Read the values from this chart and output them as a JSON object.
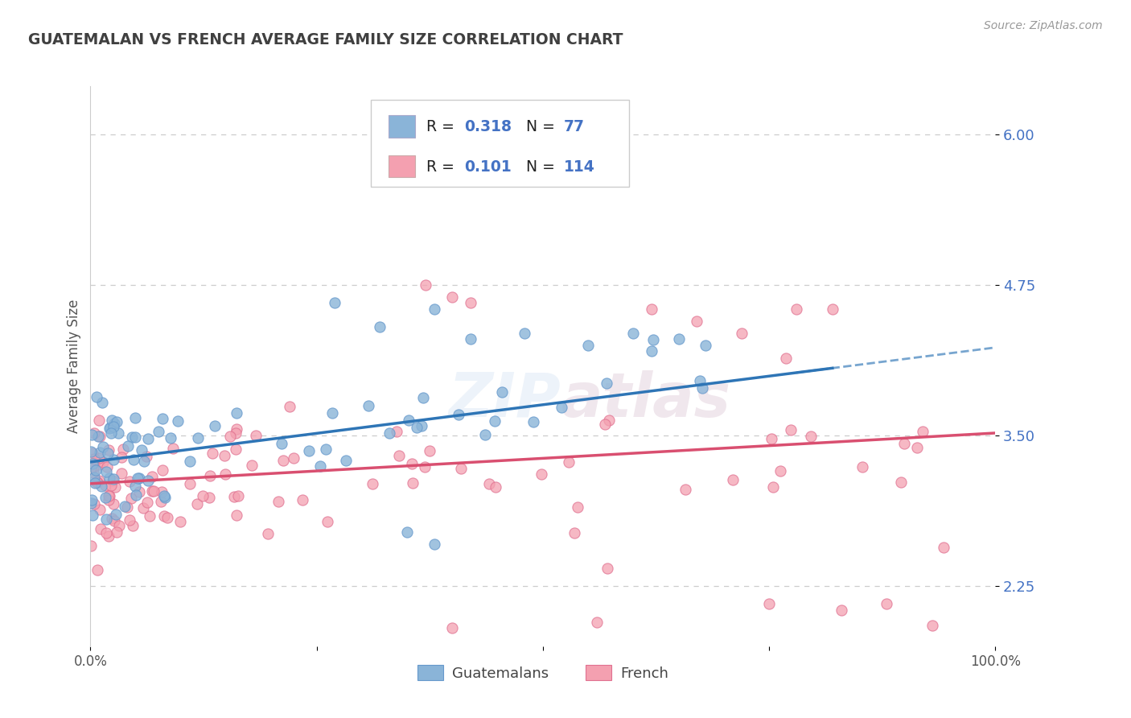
{
  "title": "GUATEMALAN VS FRENCH AVERAGE FAMILY SIZE CORRELATION CHART",
  "source_text": "Source: ZipAtlas.com",
  "ylabel": "Average Family Size",
  "xlabel": "",
  "xlim": [
    0,
    1
  ],
  "ylim": [
    1.75,
    6.4
  ],
  "yticks": [
    2.25,
    3.5,
    4.75,
    6.0
  ],
  "xticks": [
    0.0,
    0.25,
    0.5,
    0.75,
    1.0
  ],
  "xtick_labels": [
    "0.0%",
    "",
    "",
    "",
    "100.0%"
  ],
  "guatemalan_color": "#8ab4d8",
  "guatemalan_edge": "#6699cc",
  "french_color": "#f4a0b0",
  "french_edge": "#e07090",
  "guatemalan_trend_color": "#2e75b6",
  "french_trend_color": "#d94f70",
  "R_guatemalan": 0.318,
  "N_guatemalan": 77,
  "R_french": 0.101,
  "N_french": 114,
  "grid_color": "#cccccc",
  "background_color": "#ffffff",
  "title_color": "#404040",
  "axis_label_color": "#4472c4",
  "value_color": "#4472c4",
  "watermark": "ZIPatlas",
  "legend_text_color": "#222222",
  "ytick_color": "#4472c4"
}
